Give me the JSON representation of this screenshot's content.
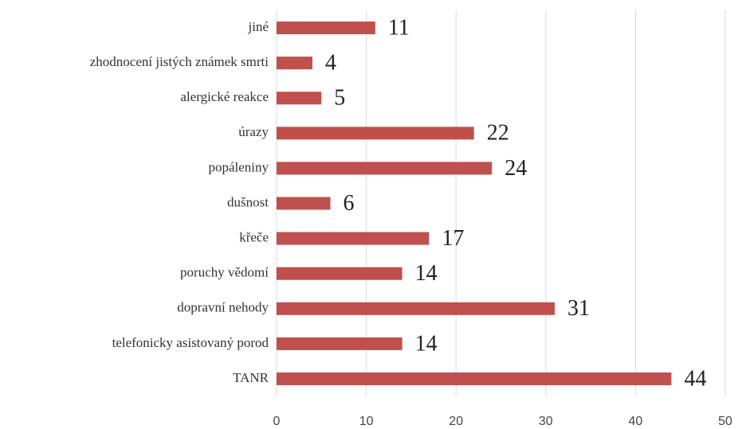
{
  "chart_data": {
    "type": "bar",
    "orientation": "horizontal",
    "categories": [
      "jiné",
      "zhodnocení jistých známek smrti",
      "alergické reakce",
      "úrazy",
      "popáleniny",
      "dušnost",
      "křeče",
      "poruchy vědomí",
      "dopravní nehody",
      "telefonicky asistovaný porod",
      "TANR"
    ],
    "values": [
      11,
      4,
      5,
      22,
      24,
      6,
      17,
      14,
      31,
      14,
      44
    ],
    "color": "#c0504d",
    "xlim": [
      0,
      50
    ],
    "xticks": [
      0,
      10,
      20,
      30,
      40,
      50
    ],
    "grid": true
  }
}
